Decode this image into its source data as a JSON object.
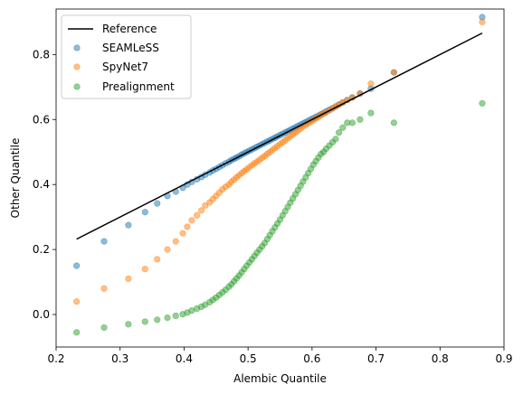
{
  "chart_data": {
    "type": "scatter",
    "title": "",
    "xlabel": "Alembic Quantile",
    "ylabel": "Other Quantile",
    "xlim": [
      0.2,
      0.9
    ],
    "ylim": [
      -0.1,
      0.94
    ],
    "xticks": [
      0.2,
      0.3,
      0.4,
      0.5,
      0.6,
      0.7,
      0.8,
      0.9
    ],
    "xtick_labels": [
      "0.2",
      "0.3",
      "0.4",
      "0.5",
      "0.6",
      "0.7",
      "0.8",
      "0.9"
    ],
    "yticks": [
      0.0,
      0.2,
      0.4,
      0.6,
      0.8
    ],
    "ytick_labels": [
      "0.0",
      "0.2",
      "0.4",
      "0.6",
      "0.8"
    ],
    "grid": false,
    "legend_position": "top-left",
    "reference": {
      "name": "Reference",
      "color": "#000000",
      "x": [
        0.232,
        0.866
      ],
      "y": [
        0.232,
        0.866
      ]
    },
    "series": [
      {
        "name": "SEAMLeSS",
        "color": "#1f77b4",
        "x": [
          0.232,
          0.275,
          0.313,
          0.339,
          0.358,
          0.374,
          0.387,
          0.398,
          0.405,
          0.412,
          0.42,
          0.427,
          0.433,
          0.44,
          0.445,
          0.45,
          0.455,
          0.46,
          0.465,
          0.47,
          0.474,
          0.478,
          0.482,
          0.486,
          0.49,
          0.494,
          0.498,
          0.502,
          0.506,
          0.51,
          0.514,
          0.518,
          0.522,
          0.526,
          0.53,
          0.534,
          0.538,
          0.542,
          0.546,
          0.55,
          0.554,
          0.558,
          0.562,
          0.566,
          0.57,
          0.574,
          0.578,
          0.582,
          0.586,
          0.59,
          0.594,
          0.598,
          0.602,
          0.606,
          0.61,
          0.614,
          0.618,
          0.622,
          0.627,
          0.632,
          0.637,
          0.642,
          0.648,
          0.655,
          0.663,
          0.675,
          0.692,
          0.728,
          0.866
        ],
        "y": [
          0.15,
          0.225,
          0.275,
          0.315,
          0.342,
          0.365,
          0.378,
          0.39,
          0.4,
          0.408,
          0.416,
          0.423,
          0.43,
          0.437,
          0.443,
          0.448,
          0.454,
          0.459,
          0.465,
          0.47,
          0.475,
          0.479,
          0.483,
          0.487,
          0.492,
          0.496,
          0.5,
          0.504,
          0.508,
          0.512,
          0.516,
          0.52,
          0.524,
          0.528,
          0.532,
          0.536,
          0.54,
          0.544,
          0.548,
          0.552,
          0.556,
          0.56,
          0.564,
          0.568,
          0.572,
          0.576,
          0.58,
          0.584,
          0.588,
          0.592,
          0.596,
          0.6,
          0.604,
          0.608,
          0.612,
          0.616,
          0.62,
          0.625,
          0.63,
          0.635,
          0.64,
          0.646,
          0.652,
          0.66,
          0.668,
          0.68,
          0.695,
          0.745,
          0.915
        ]
      },
      {
        "name": "SpyNet7",
        "color": "#ff7f0e",
        "x": [
          0.232,
          0.275,
          0.313,
          0.339,
          0.358,
          0.374,
          0.387,
          0.398,
          0.405,
          0.412,
          0.42,
          0.427,
          0.433,
          0.44,
          0.445,
          0.45,
          0.455,
          0.46,
          0.465,
          0.47,
          0.474,
          0.478,
          0.482,
          0.486,
          0.49,
          0.494,
          0.498,
          0.502,
          0.506,
          0.51,
          0.514,
          0.518,
          0.522,
          0.526,
          0.53,
          0.534,
          0.538,
          0.542,
          0.546,
          0.55,
          0.554,
          0.558,
          0.562,
          0.566,
          0.57,
          0.574,
          0.578,
          0.582,
          0.586,
          0.59,
          0.594,
          0.598,
          0.602,
          0.606,
          0.61,
          0.614,
          0.618,
          0.622,
          0.627,
          0.632,
          0.637,
          0.642,
          0.648,
          0.655,
          0.663,
          0.675,
          0.692,
          0.728,
          0.866
        ],
        "y": [
          0.04,
          0.08,
          0.11,
          0.14,
          0.17,
          0.2,
          0.225,
          0.25,
          0.27,
          0.29,
          0.305,
          0.32,
          0.335,
          0.345,
          0.355,
          0.365,
          0.375,
          0.385,
          0.393,
          0.4,
          0.408,
          0.415,
          0.422,
          0.428,
          0.435,
          0.441,
          0.447,
          0.453,
          0.459,
          0.465,
          0.47,
          0.476,
          0.482,
          0.488,
          0.494,
          0.5,
          0.506,
          0.512,
          0.518,
          0.524,
          0.53,
          0.536,
          0.542,
          0.548,
          0.554,
          0.56,
          0.566,
          0.572,
          0.578,
          0.583,
          0.588,
          0.593,
          0.598,
          0.603,
          0.608,
          0.613,
          0.618,
          0.622,
          0.628,
          0.634,
          0.64,
          0.646,
          0.653,
          0.66,
          0.668,
          0.68,
          0.71,
          0.745,
          0.9
        ]
      },
      {
        "name": "Prealignment",
        "color": "#2ca02c",
        "x": [
          0.232,
          0.275,
          0.313,
          0.339,
          0.358,
          0.374,
          0.387,
          0.398,
          0.405,
          0.412,
          0.42,
          0.427,
          0.433,
          0.44,
          0.445,
          0.45,
          0.455,
          0.46,
          0.465,
          0.47,
          0.474,
          0.478,
          0.482,
          0.486,
          0.49,
          0.494,
          0.498,
          0.502,
          0.506,
          0.51,
          0.514,
          0.518,
          0.522,
          0.526,
          0.53,
          0.534,
          0.538,
          0.542,
          0.546,
          0.55,
          0.554,
          0.558,
          0.562,
          0.566,
          0.57,
          0.574,
          0.578,
          0.582,
          0.586,
          0.59,
          0.594,
          0.598,
          0.602,
          0.606,
          0.61,
          0.614,
          0.618,
          0.622,
          0.627,
          0.632,
          0.637,
          0.642,
          0.648,
          0.655,
          0.663,
          0.675,
          0.692,
          0.728,
          0.866
        ],
        "y": [
          -0.055,
          -0.04,
          -0.03,
          -0.022,
          -0.016,
          -0.01,
          -0.004,
          0.001,
          0.006,
          0.012,
          0.018,
          0.024,
          0.03,
          0.038,
          0.045,
          0.052,
          0.06,
          0.068,
          0.076,
          0.085,
          0.093,
          0.102,
          0.111,
          0.12,
          0.13,
          0.14,
          0.15,
          0.16,
          0.17,
          0.18,
          0.19,
          0.2,
          0.21,
          0.22,
          0.232,
          0.244,
          0.256,
          0.268,
          0.28,
          0.292,
          0.305,
          0.318,
          0.331,
          0.344,
          0.357,
          0.37,
          0.383,
          0.396,
          0.409,
          0.422,
          0.435,
          0.448,
          0.461,
          0.472,
          0.483,
          0.494,
          0.5,
          0.51,
          0.52,
          0.53,
          0.54,
          0.56,
          0.575,
          0.59,
          0.59,
          0.6,
          0.62,
          0.59,
          0.65
        ]
      }
    ]
  }
}
